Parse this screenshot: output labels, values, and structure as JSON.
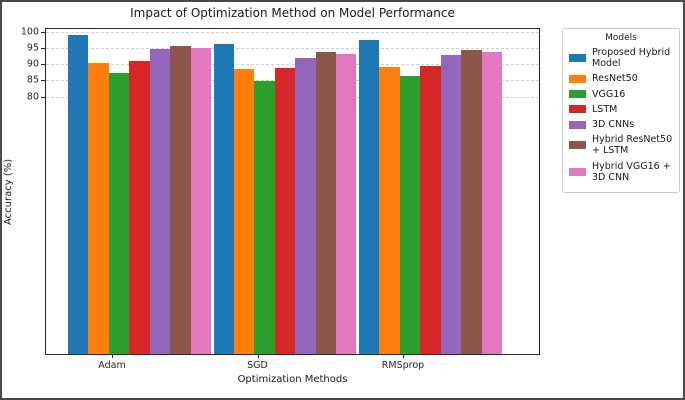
{
  "chart_data": {
    "type": "bar",
    "title": "Impact of Optimization Method on Model Performance",
    "xlabel": "Optimization Methods",
    "ylabel": "Accuracy (%)",
    "categories": [
      "Adam",
      "SGD",
      "RMSprop"
    ],
    "series": [
      {
        "name": "Proposed Hybrid Model",
        "color": "#1f77b4",
        "values": [
          99.2,
          96.3,
          97.7
        ]
      },
      {
        "name": "ResNet50",
        "color": "#ff7f0e",
        "values": [
          90.3,
          88.7,
          89.2
        ]
      },
      {
        "name": "VGG16",
        "color": "#2ca02c",
        "values": [
          87.4,
          84.9,
          86.4
        ]
      },
      {
        "name": "LSTM",
        "color": "#d62728",
        "values": [
          91.1,
          89.0,
          89.6
        ]
      },
      {
        "name": "3D CNNs",
        "color": "#9467bd",
        "values": [
          94.7,
          92.1,
          92.9
        ]
      },
      {
        "name": "Hybrid ResNet50 + LSTM",
        "color": "#8c564b",
        "values": [
          95.7,
          94.0,
          94.6
        ]
      },
      {
        "name": "Hybrid VGG16 + 3D CNN",
        "color": "#e377c2",
        "values": [
          95.1,
          93.3,
          93.9
        ]
      }
    ],
    "yticks": [
      100,
      95,
      90,
      85,
      80
    ],
    "ylim": [
      0,
      101
    ],
    "grid": {
      "axis": "y",
      "style": "dashed",
      "color": "#cfcfcf"
    },
    "legend": {
      "title": "Models",
      "position": "outside-right"
    }
  }
}
